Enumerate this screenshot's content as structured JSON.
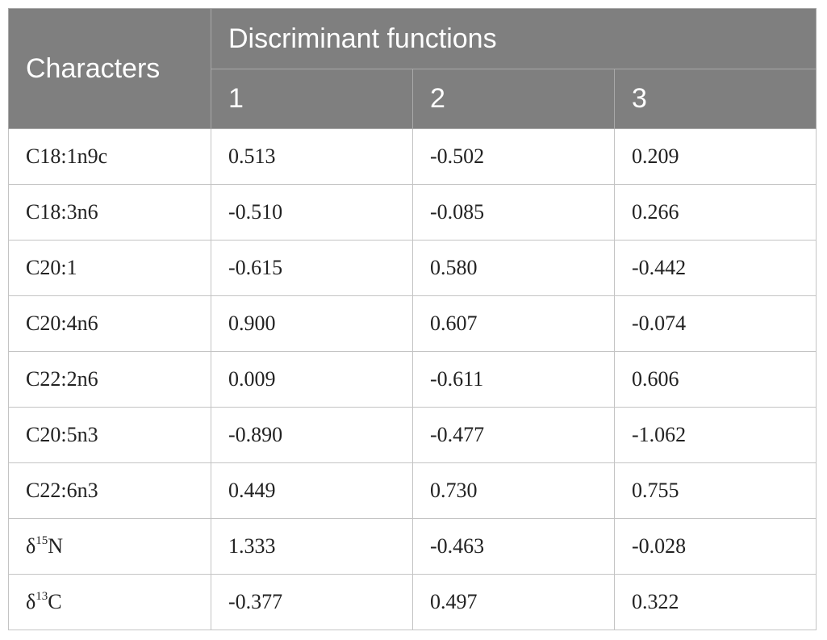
{
  "table": {
    "header": {
      "characters": "Characters",
      "group": "Discriminant functions",
      "functions": [
        "1",
        "2",
        "3"
      ]
    },
    "rows": [
      {
        "character": "C18:1n9c",
        "values": [
          "0.513",
          "-0.502",
          "0.209"
        ]
      },
      {
        "character": "C18:3n6",
        "values": [
          "-0.510",
          "-0.085",
          "0.266"
        ]
      },
      {
        "character": "C20:1",
        "values": [
          "-0.615",
          "0.580",
          "-0.442"
        ]
      },
      {
        "character": "C20:4n6",
        "values": [
          "0.900",
          "0.607",
          "-0.074"
        ]
      },
      {
        "character": "C22:2n6",
        "values": [
          "0.009",
          "-0.611",
          "0.606"
        ]
      },
      {
        "character": "C20:5n3",
        "values": [
          "-0.890",
          "-0.477",
          "-1.062"
        ]
      },
      {
        "character": "C22:6n3",
        "values": [
          "0.449",
          "0.730",
          "0.755"
        ]
      },
      {
        "character_symbol": "δ",
        "character_sup": "15",
        "character_element": "N",
        "values": [
          "1.333",
          "-0.463",
          "-0.028"
        ]
      },
      {
        "character_symbol": "δ",
        "character_sup": "13",
        "character_element": "C",
        "values": [
          "-0.377",
          "0.497",
          "0.322"
        ]
      }
    ]
  }
}
